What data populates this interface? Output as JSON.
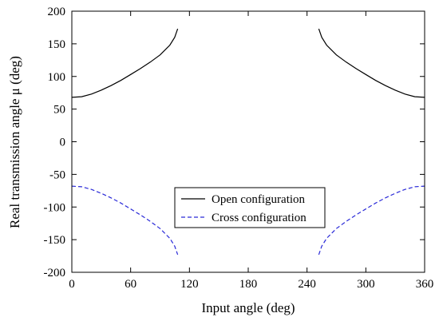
{
  "chart_data": {
    "type": "line",
    "xlabel": "Input angle (deg)",
    "ylabel": "Real transmission angle μ (deg)",
    "xlim": [
      0,
      360
    ],
    "ylim": [
      -200,
      200
    ],
    "xticks": [
      0,
      60,
      120,
      180,
      240,
      300,
      360
    ],
    "yticks": [
      200,
      150,
      100,
      50,
      0,
      -50,
      -100,
      -150,
      -200
    ],
    "grid": false,
    "legend_position": "lower-center",
    "series": [
      {
        "name": "Open configuration",
        "color": "#000000",
        "style": "solid",
        "segments": [
          {
            "x": [
              0,
              10,
              20,
              30,
              40,
              50,
              60,
              70,
              80,
              90,
              100,
              105,
              108
            ],
            "y": [
              68,
              69,
              73,
              79,
              86,
              94,
              103,
              112,
              122,
              133,
              148,
              160,
              173
            ]
          },
          {
            "x": [
              252,
              255,
              260,
              270,
              280,
              290,
              300,
              310,
              320,
              330,
              340,
              350,
              360
            ],
            "y": [
              173,
              160,
              148,
              133,
              122,
              112,
              103,
              94,
              86,
              79,
              73,
              69,
              68
            ]
          }
        ]
      },
      {
        "name": "Cross configuration",
        "color": "#2a2ad8",
        "style": "dashed",
        "segments": [
          {
            "x": [
              0,
              10,
              20,
              30,
              40,
              50,
              60,
              70,
              80,
              90,
              100,
              105,
              108
            ],
            "y": [
              -68,
              -69,
              -73,
              -79,
              -86,
              -94,
              -103,
              -112,
              -122,
              -133,
              -148,
              -160,
              -173
            ]
          },
          {
            "x": [
              252,
              255,
              260,
              270,
              280,
              290,
              300,
              310,
              320,
              330,
              340,
              350,
              360
            ],
            "y": [
              -173,
              -160,
              -148,
              -133,
              -122,
              -112,
              -103,
              -94,
              -86,
              -79,
              -73,
              -69,
              -68
            ]
          }
        ]
      }
    ]
  }
}
